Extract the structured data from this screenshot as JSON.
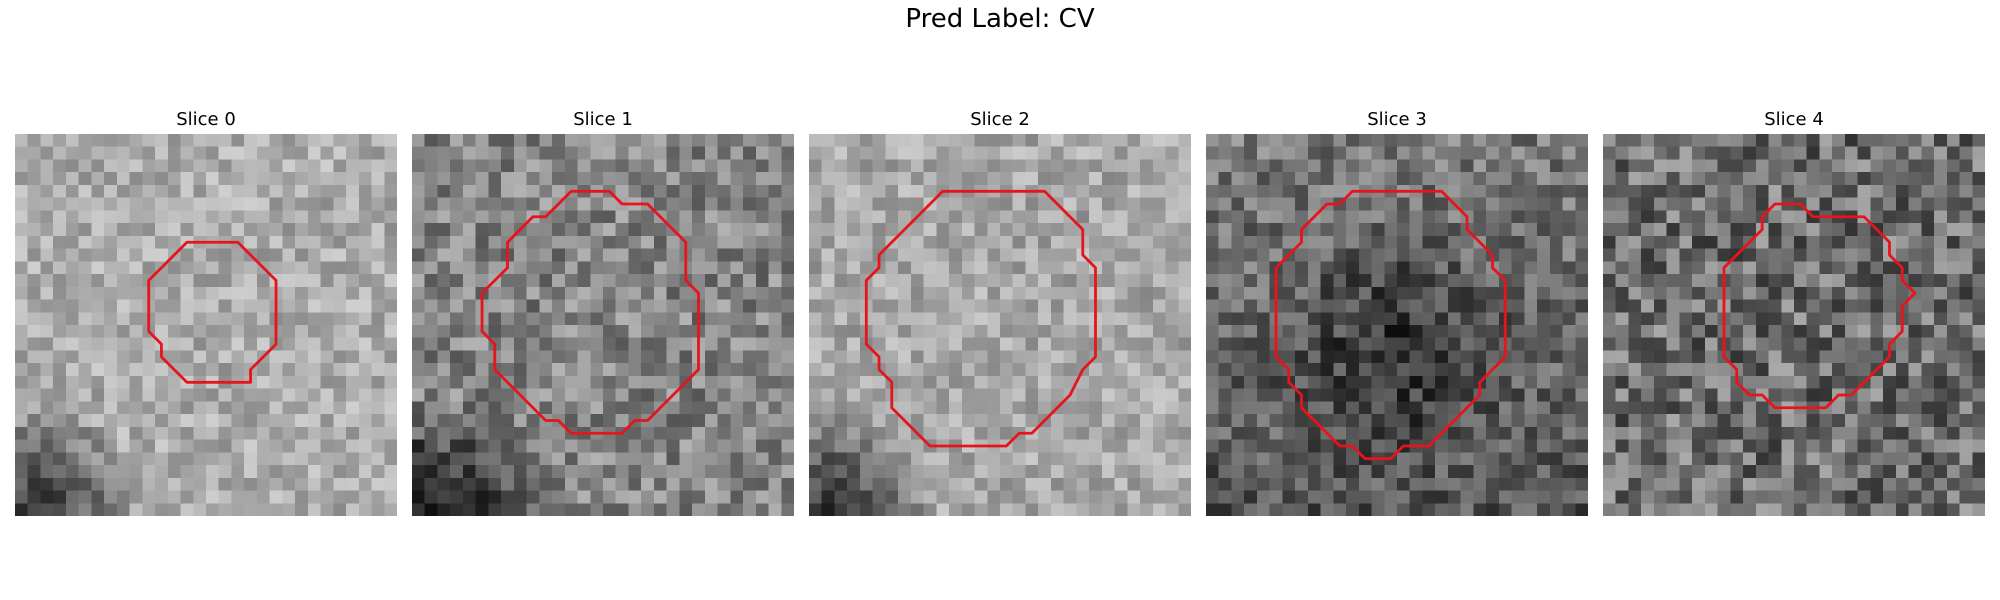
{
  "title": "Pred Label: CV",
  "panels": [
    {
      "label": "Slice 0",
      "base": 172,
      "noise": 70,
      "contour_color": "#e6141c",
      "contour": [
        [
          13.5,
          8.5
        ],
        [
          17.5,
          8.5
        ],
        [
          20.5,
          11.5
        ],
        [
          20.5,
          16.5
        ],
        [
          19.5,
          17.5
        ],
        [
          18.5,
          18.5
        ],
        [
          18.5,
          19.5
        ],
        [
          13.5,
          19.5
        ],
        [
          12.5,
          18.5
        ],
        [
          11.5,
          17.5
        ],
        [
          11.5,
          16.5
        ],
        [
          10.5,
          15.5
        ],
        [
          10.5,
          11.5
        ],
        [
          11.5,
          10.5
        ],
        [
          12.5,
          9.5
        ]
      ],
      "dark_corner": "bottom-left"
    },
    {
      "label": "Slice 1",
      "base": 132,
      "noise": 95,
      "contour_color": "#e6141c",
      "contour": [
        [
          12.5,
          4.5
        ],
        [
          15.5,
          4.5
        ],
        [
          16.5,
          5.5
        ],
        [
          18.5,
          5.5
        ],
        [
          21.5,
          8.5
        ],
        [
          21.5,
          11.5
        ],
        [
          22.5,
          12.5
        ],
        [
          22.5,
          18.5
        ],
        [
          18.5,
          22.5
        ],
        [
          17.5,
          22.5
        ],
        [
          16.5,
          23.5
        ],
        [
          12.5,
          23.5
        ],
        [
          11.5,
          22.5
        ],
        [
          10.5,
          22.5
        ],
        [
          6.5,
          18.5
        ],
        [
          6.5,
          16.5
        ],
        [
          5.5,
          15.5
        ],
        [
          5.5,
          12.5
        ],
        [
          6.5,
          11.5
        ],
        [
          7.5,
          10.5
        ],
        [
          7.5,
          8.5
        ],
        [
          8.5,
          7.5
        ],
        [
          9.5,
          6.5
        ],
        [
          10.5,
          6.5
        ],
        [
          11.5,
          5.5
        ]
      ],
      "dark_corner": "bottom-left"
    },
    {
      "label": "Slice 2",
      "base": 168,
      "noise": 70,
      "contour_color": "#e6141c",
      "contour": [
        [
          10.5,
          4.5
        ],
        [
          18.5,
          4.5
        ],
        [
          21.5,
          7.5
        ],
        [
          21.5,
          9.5
        ],
        [
          22.5,
          10.5
        ],
        [
          22.5,
          15.5
        ],
        [
          22.5,
          17.5
        ],
        [
          21.5,
          18.5
        ],
        [
          20.5,
          20.5
        ],
        [
          19.5,
          21.5
        ],
        [
          17.5,
          23.5
        ],
        [
          16.5,
          23.5
        ],
        [
          15.5,
          24.5
        ],
        [
          9.5,
          24.5
        ],
        [
          6.5,
          21.5
        ],
        [
          6.5,
          19.5
        ],
        [
          5.5,
          18.5
        ],
        [
          5.5,
          17.5
        ],
        [
          4.5,
          16.5
        ],
        [
          4.5,
          11.5
        ],
        [
          5.5,
          10.5
        ],
        [
          5.5,
          9.5
        ],
        [
          6.5,
          8.5
        ]
      ],
      "dark_corner": "bottom-left"
    },
    {
      "label": "Slice 3",
      "base": 120,
      "noise": 90,
      "contour_color": "#e6141c",
      "contour": [
        [
          11.5,
          4.5
        ],
        [
          18.5,
          4.5
        ],
        [
          20.5,
          6.5
        ],
        [
          20.5,
          7.5
        ],
        [
          21.5,
          8.5
        ],
        [
          22.5,
          9.5
        ],
        [
          22.5,
          10.5
        ],
        [
          23.5,
          11.5
        ],
        [
          23.5,
          17.5
        ],
        [
          22.5,
          18.5
        ],
        [
          21.5,
          19.5
        ],
        [
          21.5,
          20.5
        ],
        [
          20.5,
          21.5
        ],
        [
          19.5,
          22.5
        ],
        [
          18.5,
          23.5
        ],
        [
          17.5,
          24.5
        ],
        [
          15.5,
          24.5
        ],
        [
          14.5,
          25.5
        ],
        [
          12.5,
          25.5
        ],
        [
          11.5,
          24.5
        ],
        [
          10.5,
          24.5
        ],
        [
          9.5,
          23.5
        ],
        [
          8.5,
          22.5
        ],
        [
          7.5,
          21.5
        ],
        [
          7.5,
          20.5
        ],
        [
          6.5,
          19.5
        ],
        [
          6.5,
          18.5
        ],
        [
          5.5,
          17.5
        ],
        [
          5.5,
          10.5
        ],
        [
          7.5,
          8.5
        ],
        [
          7.5,
          7.5
        ],
        [
          9.5,
          5.5
        ],
        [
          10.5,
          5.5
        ]
      ],
      "dark_center": true
    },
    {
      "label": "Slice 4",
      "base": 110,
      "noise": 120,
      "contour_color": "#e6141c",
      "contour": [
        [
          13.5,
          5.5
        ],
        [
          15.5,
          5.5
        ],
        [
          16.5,
          6.5
        ],
        [
          20.5,
          6.5
        ],
        [
          22.5,
          8.5
        ],
        [
          22.5,
          9.5
        ],
        [
          23.5,
          10.5
        ],
        [
          23.5,
          11.5
        ],
        [
          24.5,
          12.5
        ],
        [
          23.5,
          13.5
        ],
        [
          23.5,
          15.5
        ],
        [
          22.5,
          16.5
        ],
        [
          22.5,
          17.5
        ],
        [
          21.5,
          18.5
        ],
        [
          20.5,
          19.5
        ],
        [
          19.5,
          20.5
        ],
        [
          18.5,
          20.5
        ],
        [
          17.5,
          21.5
        ],
        [
          13.5,
          21.5
        ],
        [
          12.5,
          20.5
        ],
        [
          11.5,
          20.5
        ],
        [
          10.5,
          19.5
        ],
        [
          10.5,
          18.5
        ],
        [
          9.5,
          17.5
        ],
        [
          9.5,
          16.5
        ],
        [
          9.5,
          15.5
        ],
        [
          9.5,
          10.5
        ],
        [
          10.5,
          9.5
        ],
        [
          11.5,
          8.5
        ],
        [
          12.5,
          7.5
        ],
        [
          12.5,
          6.5
        ]
      ]
    }
  ]
}
